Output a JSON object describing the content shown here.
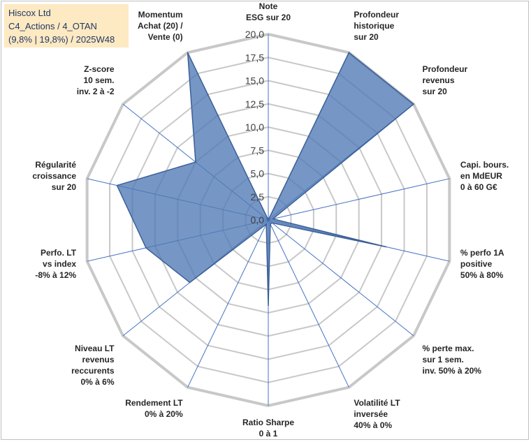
{
  "header": {
    "company": "Hiscox Ltd",
    "portfolio": "C4_Actions / 4_OTAN",
    "period": "(9,8% | 19,8%) / 2025W48"
  },
  "colors": {
    "fill": "#4f7ab5",
    "fill_opacity": 0.78,
    "stroke": "#3b5f96",
    "grid": "#c8c8c8",
    "spoke": "#4472c4",
    "title_bg": "#fde9c2",
    "title_text": "#1f3864"
  },
  "chart_data": {
    "type": "radar",
    "title": "",
    "rmin": 0,
    "rmax": 20,
    "tick_step": 2.5,
    "tick_labels": [
      "0,0",
      "2,5",
      "5,0",
      "7,5",
      "10,0",
      "12,5",
      "15,0",
      "17,5",
      "20,0"
    ],
    "axes": [
      {
        "label": [
          "Note",
          "ESG sur 20"
        ],
        "value": 0
      },
      {
        "label": [
          "Profondeur",
          "historique",
          "sur 20"
        ],
        "value": 20
      },
      {
        "label": [
          "Profondeur",
          "revenus",
          "sur 20"
        ],
        "value": 20
      },
      {
        "label": [
          "Capi. bours.",
          "en MdEUR",
          "0 à 60 G€"
        ],
        "value": 0.5
      },
      {
        "label": [
          "% perfo 1A",
          "positive",
          "50% à 80%"
        ],
        "value": 13
      },
      {
        "label": [
          "% perte max.",
          "sur 1 sem.",
          "inv. 50% à 20%"
        ],
        "value": 0.5
      },
      {
        "label": [
          "Volatilité LT",
          "inversée",
          "40% à 0%"
        ],
        "value": 0.5
      },
      {
        "label": [
          "Ratio Sharpe",
          "0 à 1"
        ],
        "value": 9.2
      },
      {
        "label": [
          "Rendement LT",
          "0% à 20%"
        ],
        "value": 0.5
      },
      {
        "label": [
          "Niveau LT",
          "revenus",
          "reccurents",
          "0% à 6%"
        ],
        "value": 10.8
      },
      {
        "label": [
          "Perfo. LT",
          "vs index",
          "-8% à 12%"
        ],
        "value": 13.5
      },
      {
        "label": [
          "Régularité",
          "croissance",
          "sur 20"
        ],
        "value": 16.7
      },
      {
        "label": [
          "Z-score",
          "10 sem.",
          "inv. 2 à -2"
        ],
        "value": 10
      },
      {
        "label": [
          "Momentum",
          "Achat (20) /",
          "Vente (0)"
        ],
        "value": 20
      }
    ]
  }
}
